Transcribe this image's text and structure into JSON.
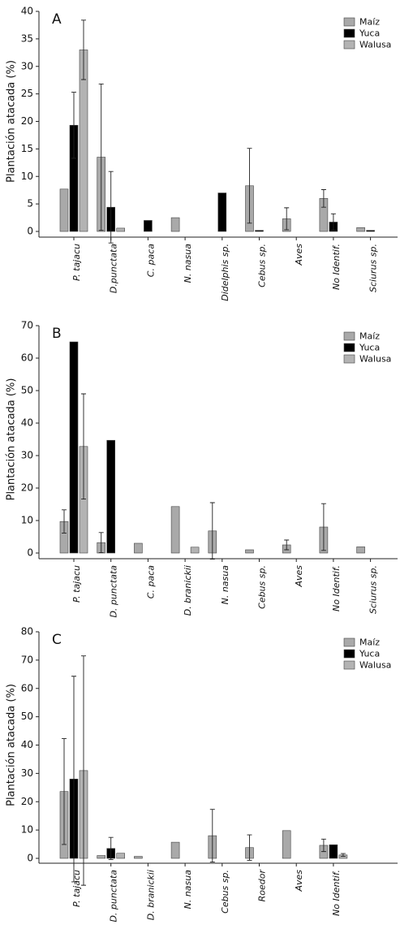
{
  "chart_data": [
    {
      "type": "bar",
      "label": "A",
      "ylabel": "Plantación atacada (%)",
      "categories": [
        "P. tajacu",
        "D.punctata",
        "C. paca",
        "N. nasua",
        "Didelphis sp.",
        "Cebus sp.",
        "Aves",
        "No Identif.",
        "Sciurus sp."
      ],
      "series": [
        {
          "name": "Maíz",
          "color": "#a9a9a9",
          "values": [
            7.7,
            13.5,
            null,
            2.5,
            null,
            8.3,
            2.3,
            6.0,
            0.7
          ],
          "errors": [
            null,
            13.3,
            null,
            null,
            null,
            6.8,
            2.0,
            1.6,
            null
          ]
        },
        {
          "name": "Yuca",
          "color": "#000000",
          "values": [
            19.3,
            4.4,
            2.0,
            null,
            7.0,
            0.2,
            null,
            1.7,
            0.2
          ],
          "errors": [
            6.0,
            6.5,
            null,
            null,
            null,
            null,
            null,
            1.5,
            null
          ]
        },
        {
          "name": "Walusa",
          "color": "#b3b3b3",
          "values": [
            33.0,
            0.6,
            null,
            null,
            null,
            null,
            null,
            null,
            null
          ],
          "errors": [
            5.4,
            null,
            null,
            null,
            null,
            null,
            null,
            null,
            null
          ]
        }
      ],
      "ylim": [
        0,
        40
      ],
      "yticks": [
        0,
        5,
        10,
        15,
        20,
        25,
        30,
        35,
        40
      ],
      "legend": "upper right"
    },
    {
      "type": "bar",
      "label": "B",
      "ylabel": "Plantación atacada (%)",
      "categories": [
        "P. tajacu",
        "D. punctata",
        "C. paca",
        "D. branickii",
        "N. nasua",
        "Cebus sp.",
        "Aves",
        "No Identif.",
        "Sciurus sp."
      ],
      "series": [
        {
          "name": "Maíz",
          "color": "#a9a9a9",
          "values": [
            9.7,
            3.2,
            3.0,
            14.3,
            6.8,
            1.0,
            2.5,
            8.0,
            1.9
          ],
          "errors": [
            3.6,
            3.1,
            null,
            null,
            8.7,
            null,
            1.5,
            7.2,
            null
          ]
        },
        {
          "name": "Yuca",
          "color": "#000000",
          "values": [
            65.0,
            34.7,
            null,
            null,
            null,
            null,
            null,
            null,
            null
          ],
          "errors": [
            null,
            null,
            null,
            null,
            null,
            null,
            null,
            null,
            null
          ]
        },
        {
          "name": "Walusa",
          "color": "#b3b3b3",
          "values": [
            32.8,
            null,
            null,
            1.8,
            null,
            null,
            null,
            null,
            null
          ],
          "errors": [
            16.2,
            null,
            null,
            null,
            null,
            null,
            null,
            null,
            null
          ]
        }
      ],
      "ylim": [
        0,
        70
      ],
      "yticks": [
        0,
        10,
        20,
        30,
        40,
        50,
        60,
        70
      ],
      "legend": "upper right"
    },
    {
      "type": "bar",
      "label": "C",
      "ylabel": "Plantación atacada (%)",
      "categories": [
        "P. tajacu",
        "D. punctata",
        "D. branickii",
        "N. nasua",
        "Cebus sp.",
        "Roedor",
        "Aves",
        "No Identif."
      ],
      "series": [
        {
          "name": "Maíz",
          "color": "#a9a9a9",
          "values": [
            23.6,
            1.0,
            0.7,
            5.7,
            8.0,
            3.8,
            9.8,
            4.6
          ],
          "errors": [
            18.7,
            null,
            null,
            null,
            9.3,
            4.5,
            null,
            2.2
          ]
        },
        {
          "name": "Yuca",
          "color": "#000000",
          "values": [
            28.0,
            3.5,
            null,
            null,
            null,
            null,
            null,
            4.8
          ],
          "errors": [
            36.3,
            3.9,
            null,
            null,
            null,
            null,
            null,
            null
          ]
        },
        {
          "name": "Walusa",
          "color": "#b3b3b3",
          "values": [
            31.0,
            1.8,
            null,
            null,
            null,
            null,
            null,
            1.2
          ],
          "errors": [
            40.5,
            null,
            null,
            null,
            null,
            null,
            null,
            0.5
          ]
        }
      ],
      "ylim": [
        0,
        80
      ],
      "yticks": [
        0,
        10,
        20,
        30,
        40,
        50,
        60,
        70,
        80
      ],
      "legend": "upper right"
    }
  ]
}
